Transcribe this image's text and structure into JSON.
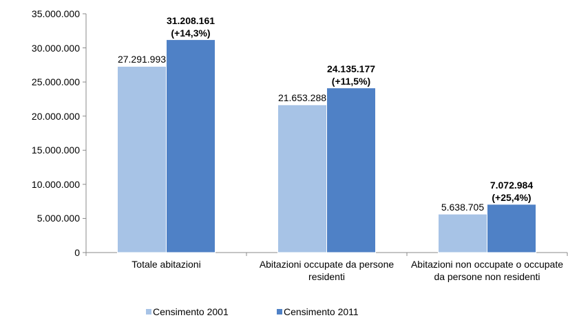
{
  "chart_data": {
    "type": "bar",
    "categories": [
      "Totale abitazioni",
      "Abitazioni occupate da persone residenti",
      "Abitazioni non occupate o occupate da persone non residenti"
    ],
    "series": [
      {
        "name": "Censimento 2001",
        "color": "#a7c3e6",
        "values": [
          27291993,
          21653288,
          5638705
        ],
        "value_labels": [
          "27.291.993",
          "21.653.288",
          "5.638.705"
        ]
      },
      {
        "name": "Censimento 2011",
        "color": "#4f81c6",
        "values": [
          31208161,
          24135177,
          7072984
        ],
        "value_labels": [
          "31.208.161\n(+14,3%)",
          "24.135.177\n(+11,5%)",
          "7.072.984\n(+25,4%)"
        ]
      }
    ],
    "ylim": [
      0,
      35000000
    ],
    "yticks": [
      0,
      {
        "value": 5000000,
        "label": "5.000.000"
      },
      {
        "value": 10000000,
        "label": "10.000.000"
      },
      {
        "value": 15000000,
        "label": "15.000.000"
      },
      {
        "value": 20000000,
        "label": "20.000.000"
      },
      {
        "value": 25000000,
        "label": "25.000.000"
      },
      {
        "value": 30000000,
        "label": "30.000.000"
      },
      {
        "value": 35000000,
        "label": "35.000.000"
      }
    ],
    "grid": false,
    "legend": "bottom"
  }
}
